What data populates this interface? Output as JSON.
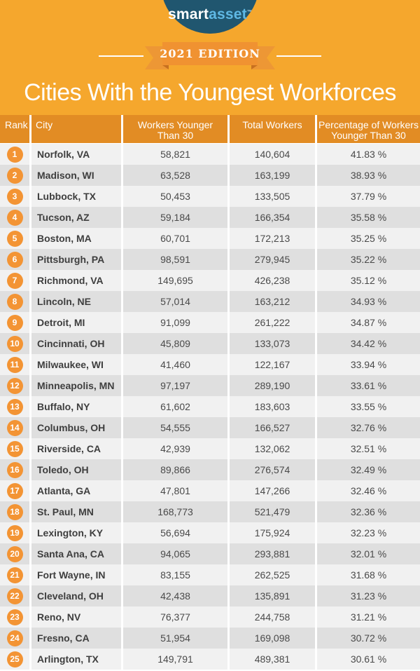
{
  "brand": {
    "part1": "smart",
    "part2": "asset",
    "tm": "™"
  },
  "edition": "2021 EDITION",
  "title": "Cities With the Youngest Workforces",
  "columns": {
    "rank": "Rank",
    "city": "City",
    "younger": "Workers Younger\nThan 30",
    "total": "Total Workers",
    "pct": "Percentage of Workers\nYounger Than 30"
  },
  "rows": [
    {
      "rank": "1",
      "city": "Norfolk, VA",
      "younger": "58,821",
      "total": "140,604",
      "pct": "41.83 %"
    },
    {
      "rank": "2",
      "city": "Madison, WI",
      "younger": "63,528",
      "total": "163,199",
      "pct": "38.93 %"
    },
    {
      "rank": "3",
      "city": "Lubbock, TX",
      "younger": "50,453",
      "total": "133,505",
      "pct": "37.79 %"
    },
    {
      "rank": "4",
      "city": "Tucson, AZ",
      "younger": "59,184",
      "total": "166,354",
      "pct": "35.58 %"
    },
    {
      "rank": "5",
      "city": "Boston, MA",
      "younger": "60,701",
      "total": "172,213",
      "pct": "35.25 %"
    },
    {
      "rank": "6",
      "city": "Pittsburgh, PA",
      "younger": "98,591",
      "total": "279,945",
      "pct": "35.22 %"
    },
    {
      "rank": "7",
      "city": "Richmond, VA",
      "younger": "149,695",
      "total": "426,238",
      "pct": "35.12 %"
    },
    {
      "rank": "8",
      "city": "Lincoln, NE",
      "younger": "57,014",
      "total": "163,212",
      "pct": "34.93 %"
    },
    {
      "rank": "9",
      "city": "Detroit, MI",
      "younger": "91,099",
      "total": "261,222",
      "pct": "34.87 %"
    },
    {
      "rank": "10",
      "city": "Cincinnati, OH",
      "younger": "45,809",
      "total": "133,073",
      "pct": "34.42 %"
    },
    {
      "rank": "11",
      "city": "Milwaukee, WI",
      "younger": "41,460",
      "total": "122,167",
      "pct": "33.94 %"
    },
    {
      "rank": "12",
      "city": "Minneapolis, MN",
      "younger": "97,197",
      "total": "289,190",
      "pct": "33.61 %"
    },
    {
      "rank": "13",
      "city": "Buffalo, NY",
      "younger": "61,602",
      "total": "183,603",
      "pct": "33.55 %"
    },
    {
      "rank": "14",
      "city": "Columbus, OH",
      "younger": "54,555",
      "total": "166,527",
      "pct": "32.76 %"
    },
    {
      "rank": "15",
      "city": "Riverside, CA",
      "younger": "42,939",
      "total": "132,062",
      "pct": "32.51 %"
    },
    {
      "rank": "16",
      "city": "Toledo, OH",
      "younger": "89,866",
      "total": "276,574",
      "pct": "32.49 %"
    },
    {
      "rank": "17",
      "city": "Atlanta, GA",
      "younger": "47,801",
      "total": "147,266",
      "pct": "32.46 %"
    },
    {
      "rank": "18",
      "city": "St. Paul, MN",
      "younger": "168,773",
      "total": "521,479",
      "pct": "32.36 %"
    },
    {
      "rank": "19",
      "city": "Lexington, KY",
      "younger": "56,694",
      "total": "175,924",
      "pct": "32.23 %"
    },
    {
      "rank": "20",
      "city": "Santa Ana, CA",
      "younger": "94,065",
      "total": "293,881",
      "pct": "32.01 %"
    },
    {
      "rank": "21",
      "city": "Fort Wayne, IN",
      "younger": "83,155",
      "total": "262,525",
      "pct": "31.68 %"
    },
    {
      "rank": "22",
      "city": "Cleveland, OH",
      "younger": "42,438",
      "total": "135,891",
      "pct": "31.23 %"
    },
    {
      "rank": "23",
      "city": "Reno, NV",
      "younger": "76,377",
      "total": "244,758",
      "pct": "31.21 %"
    },
    {
      "rank": "24",
      "city": "Fresno, CA",
      "younger": "51,954",
      "total": "169,098",
      "pct": "30.72 %"
    },
    {
      "rank": "25",
      "city": "Arlington, TX",
      "younger": "149,791",
      "total": "489,381",
      "pct": "30.61 %"
    }
  ],
  "colors": {
    "background_orange": "#F5A72D",
    "table_header_orange": "#E28C24",
    "ribbon_orange": "#F09231",
    "ribbon_tail_orange": "#ED9735",
    "ribbon_fold_orange": "#C77020",
    "badge_orange": "#F39434",
    "logo_navy": "#20566F",
    "logo_accent_blue": "#5FB8E4",
    "row_light_gray": "#F1F1F1",
    "row_dark_gray": "#DFDFDF",
    "text_dark": "#3E3E3E"
  },
  "chart_data": {
    "type": "table",
    "title": "Cities With the Youngest Workforces",
    "subtitle": "2021 EDITION",
    "columns": [
      "Rank",
      "City",
      "Workers Younger Than 30",
      "Total Workers",
      "Percentage of Workers Younger Than 30"
    ],
    "rows": [
      [
        1,
        "Norfolk, VA",
        58821,
        140604,
        41.83
      ],
      [
        2,
        "Madison, WI",
        63528,
        163199,
        38.93
      ],
      [
        3,
        "Lubbock, TX",
        50453,
        133505,
        37.79
      ],
      [
        4,
        "Tucson, AZ",
        59184,
        166354,
        35.58
      ],
      [
        5,
        "Boston, MA",
        60701,
        172213,
        35.25
      ],
      [
        6,
        "Pittsburgh, PA",
        98591,
        279945,
        35.22
      ],
      [
        7,
        "Richmond, VA",
        149695,
        426238,
        35.12
      ],
      [
        8,
        "Lincoln, NE",
        57014,
        163212,
        34.93
      ],
      [
        9,
        "Detroit, MI",
        91099,
        261222,
        34.87
      ],
      [
        10,
        "Cincinnati, OH",
        45809,
        133073,
        34.42
      ],
      [
        11,
        "Milwaukee, WI",
        41460,
        122167,
        33.94
      ],
      [
        12,
        "Minneapolis, MN",
        97197,
        289190,
        33.61
      ],
      [
        13,
        "Buffalo, NY",
        61602,
        183603,
        33.55
      ],
      [
        14,
        "Columbus, OH",
        54555,
        166527,
        32.76
      ],
      [
        15,
        "Riverside, CA",
        42939,
        132062,
        32.51
      ],
      [
        16,
        "Toledo, OH",
        89866,
        276574,
        32.49
      ],
      [
        17,
        "Atlanta, GA",
        47801,
        147266,
        32.46
      ],
      [
        18,
        "St. Paul, MN",
        168773,
        521479,
        32.36
      ],
      [
        19,
        "Lexington, KY",
        56694,
        175924,
        32.23
      ],
      [
        20,
        "Santa Ana, CA",
        94065,
        293881,
        32.01
      ],
      [
        21,
        "Fort Wayne, IN",
        83155,
        262525,
        31.68
      ],
      [
        22,
        "Cleveland, OH",
        42438,
        135891,
        31.23
      ],
      [
        23,
        "Reno, NV",
        76377,
        244758,
        31.21
      ],
      [
        24,
        "Fresno, CA",
        51954,
        169098,
        30.72
      ],
      [
        25,
        "Arlington, TX",
        149791,
        489381,
        30.61
      ]
    ]
  }
}
